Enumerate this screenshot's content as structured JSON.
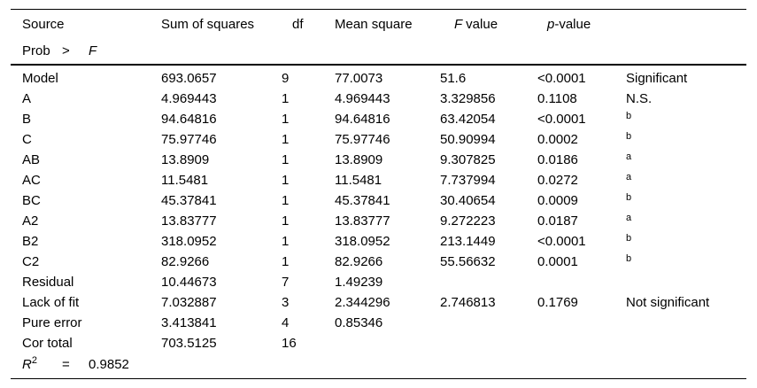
{
  "colors": {
    "text": "#000000",
    "background": "#ffffff",
    "rule": "#000000"
  },
  "table": {
    "header": {
      "source": "Source",
      "sum_of_squares": "Sum of squares",
      "df": "df",
      "mean_square": "Mean square",
      "f_italic": "F",
      "f_rest": "value",
      "p_italic": "p",
      "p_rest": "-value",
      "significance": "",
      "line2": {
        "prob": "Prob",
        "gt": ">",
        "f": "F"
      }
    },
    "rows": [
      {
        "source": "Model",
        "ss": "693.0657",
        "df": "9",
        "ms": "77.0073",
        "f": "51.6",
        "p": "<0.0001",
        "sig": "Significant"
      },
      {
        "source": "A",
        "ss": "4.969443",
        "df": "1",
        "ms": "4.969443",
        "f": "3.329856",
        "p": "0.1108",
        "sig": "N.S."
      },
      {
        "source": "B",
        "ss": "94.64816",
        "df": "1",
        "ms": "94.64816",
        "f": "63.42054",
        "p": "<0.0001",
        "sig": "b"
      },
      {
        "source": "C",
        "ss": "75.97746",
        "df": "1",
        "ms": "75.97746",
        "f": "50.90994",
        "p": "0.0002",
        "sig": "b"
      },
      {
        "source": "AB",
        "ss": "13.8909",
        "df": "1",
        "ms": "13.8909",
        "f": "9.307825",
        "p": "0.0186",
        "sig": "a"
      },
      {
        "source": "AC",
        "ss": "11.5481",
        "df": "1",
        "ms": "11.5481",
        "f": "7.737994",
        "p": "0.0272",
        "sig": "a"
      },
      {
        "source": "BC",
        "ss": "45.37841",
        "df": "1",
        "ms": "45.37841",
        "f": "30.40654",
        "p": "0.0009",
        "sig": "b"
      },
      {
        "source": "A2",
        "ss": "13.83777",
        "df": "1",
        "ms": "13.83777",
        "f": "9.272223",
        "p": "0.0187",
        "sig": "a"
      },
      {
        "source": "B2",
        "ss": "318.0952",
        "df": "1",
        "ms": "318.0952",
        "f": "213.1449",
        "p": "<0.0001",
        "sig": "b"
      },
      {
        "source": "C2",
        "ss": "82.9266",
        "df": "1",
        "ms": "82.9266",
        "f": "55.56632",
        "p": "0.0001",
        "sig": "b"
      },
      {
        "source": "Residual",
        "ss": "10.44673",
        "df": "7",
        "ms": "1.49239",
        "f": "",
        "p": "",
        "sig": ""
      },
      {
        "source": "Lack of fit",
        "ss": "7.032887",
        "df": "3",
        "ms": "2.344296",
        "f": "2.746813",
        "p": "0.1769",
        "sig": "Not significant"
      },
      {
        "source": "Pure error",
        "ss": "3.413841",
        "df": "4",
        "ms": "0.85346",
        "f": "",
        "p": "",
        "sig": ""
      },
      {
        "source": "Cor total",
        "ss": "703.5125",
        "df": "16",
        "ms": "",
        "f": "",
        "p": "",
        "sig": ""
      }
    ],
    "footer": {
      "r": "R",
      "r_sup": "2",
      "equals": "=",
      "value": "0.9852"
    }
  }
}
